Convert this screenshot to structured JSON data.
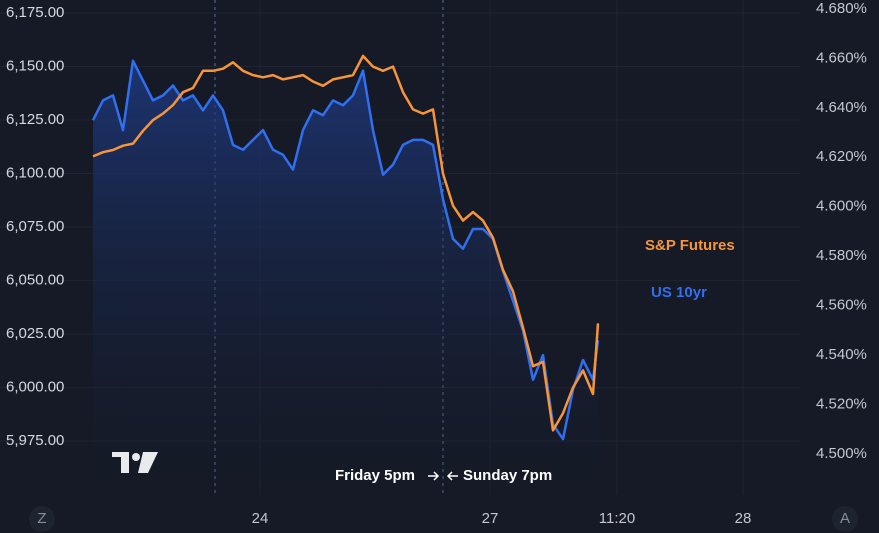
{
  "chart_data": {
    "type": "line",
    "x": [
      0,
      1,
      2,
      3,
      4,
      5,
      6,
      7,
      8,
      9,
      10,
      11,
      12,
      13,
      14,
      15,
      16,
      17,
      18,
      19,
      20,
      21,
      22,
      23,
      24,
      25,
      26,
      27,
      28,
      29,
      30,
      31,
      32,
      33,
      34,
      35,
      36,
      37,
      38,
      39,
      40,
      41,
      42,
      43,
      44,
      45,
      46,
      47,
      48,
      49,
      50,
      50.5
    ],
    "xlim": [
      -9.3,
      70.7
    ],
    "xticks": [
      {
        "value": 16.7,
        "label": "24"
      },
      {
        "value": 39.7,
        "label": "27"
      },
      {
        "value": 52.4,
        "label": "11:20"
      },
      {
        "value": 65,
        "label": "28"
      }
    ],
    "ylim": [
      5949.8,
      6181.1
    ],
    "yticks": [
      {
        "value": 5975,
        "label": "5,975.00"
      },
      {
        "value": 6000,
        "label": "6,000.00"
      },
      {
        "value": 6025,
        "label": "6,025.00"
      },
      {
        "value": 6050,
        "label": "6,050.00"
      },
      {
        "value": 6075,
        "label": "6,075.00"
      },
      {
        "value": 6100,
        "label": "6,100.00"
      },
      {
        "value": 6125,
        "label": "6,125.00"
      },
      {
        "value": 6150,
        "label": "6,150.00"
      },
      {
        "value": 6175,
        "label": "6,175.00"
      }
    ],
    "y2lim": [
      4.4834,
      4.6836
    ],
    "y2ticks": [
      {
        "value": 4.5,
        "label": "4.500%"
      },
      {
        "value": 4.52,
        "label": "4.520%"
      },
      {
        "value": 4.54,
        "label": "4.540%"
      },
      {
        "value": 4.56,
        "label": "4.560%"
      },
      {
        "value": 4.58,
        "label": "4.580%"
      },
      {
        "value": 4.6,
        "label": "4.600%"
      },
      {
        "value": 4.62,
        "label": "4.620%"
      },
      {
        "value": 4.64,
        "label": "4.640%"
      },
      {
        "value": 4.66,
        "label": "4.660%"
      },
      {
        "value": 4.68,
        "label": "4.680%"
      }
    ],
    "grid": true,
    "series": [
      {
        "name": "US 10yr",
        "color": "#2f6ff0",
        "axis": "y2",
        "area": true,
        "values": [
          4.635,
          4.643,
          4.645,
          4.631,
          4.659,
          4.651,
          4.643,
          4.645,
          4.649,
          4.643,
          4.645,
          4.639,
          4.645,
          4.639,
          4.625,
          4.623,
          4.627,
          4.631,
          4.623,
          4.621,
          4.615,
          4.631,
          4.639,
          4.637,
          4.643,
          4.641,
          4.645,
          4.655,
          4.631,
          4.613,
          4.617,
          4.625,
          4.627,
          4.627,
          4.625,
          4.603,
          4.587,
          4.583,
          4.591,
          4.591,
          4.587,
          4.574,
          4.562,
          4.55,
          4.53,
          4.54,
          4.512,
          4.506,
          4.526,
          4.538,
          4.53,
          4.546
        ]
      },
      {
        "name": "S&P Futures",
        "color": "#f7953a",
        "axis": "y",
        "values": [
          6108,
          6110,
          6111,
          6113,
          6114,
          6120,
          6125,
          6128,
          6132,
          6138,
          6140,
          6148,
          6148,
          6149,
          6152,
          6148,
          6146,
          6145,
          6146,
          6144,
          6145,
          6146,
          6143,
          6141,
          6144,
          6145,
          6146,
          6155,
          6150,
          6148,
          6150,
          6138,
          6130,
          6128,
          6130,
          6100,
          6085,
          6078,
          6082,
          6078,
          6070,
          6055,
          6045,
          6028,
          6010,
          6012,
          5980,
          5988,
          6000,
          6008,
          5997,
          6030
        ]
      }
    ],
    "vlines": [
      12.2,
      35
    ],
    "annotations": [
      "Friday 5pm",
      "Sunday 7pm"
    ],
    "buttons": [
      "Z",
      "A"
    ]
  }
}
